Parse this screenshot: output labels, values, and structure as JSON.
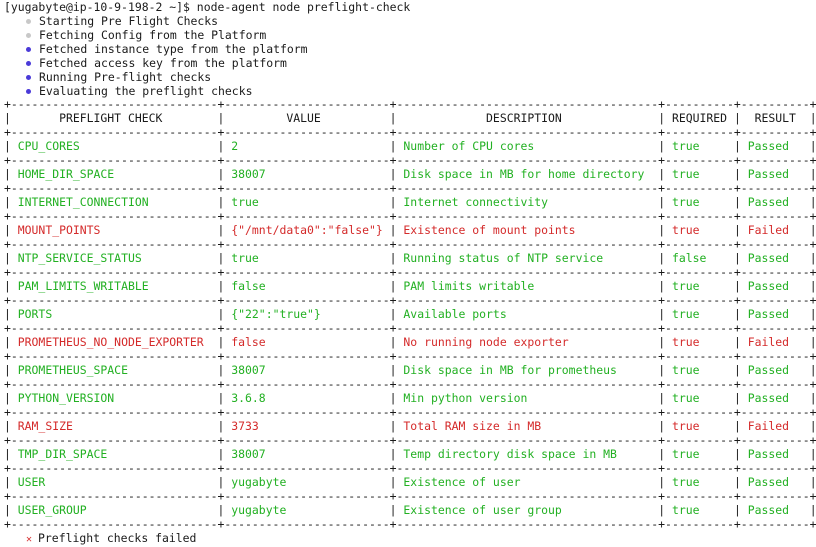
{
  "prompt": "[yugabyte@ip-10-9-198-2 ~]$ node-agent node preflight-check",
  "colors": {
    "pending_bullet": "#c8c8c8",
    "done_bullet": "#4a3ad8",
    "pass": "#22b022",
    "fail": "#d42a2a",
    "error_mark": "#d63030"
  },
  "steps": [
    {
      "text": "Starting Pre Flight Checks",
      "state": "pending"
    },
    {
      "text": "Fetching Config from the Platform",
      "state": "pending"
    },
    {
      "text": "Fetched instance type from the platform",
      "state": "done"
    },
    {
      "text": "Fetched access key from the platform",
      "state": "done"
    },
    {
      "text": "Running Pre-flight checks",
      "state": "done"
    },
    {
      "text": "Evaluating the preflight checks",
      "state": "done"
    }
  ],
  "table": {
    "headers": [
      "PREFLIGHT CHECK",
      "VALUE",
      "DESCRIPTION",
      "REQUIRED",
      "RESULT"
    ],
    "rows": [
      [
        "CPU_CORES",
        "2",
        "Number of CPU cores",
        "true",
        "Passed"
      ],
      [
        "HOME_DIR_SPACE",
        "38007",
        "Disk space in MB for home directory",
        "true",
        "Passed"
      ],
      [
        "INTERNET_CONNECTION",
        "true",
        "Internet connectivity",
        "true",
        "Passed"
      ],
      [
        "MOUNT_POINTS",
        "{\"/mnt/data0\":\"false\"}",
        "Existence of mount points",
        "true",
        "Failed"
      ],
      [
        "NTP_SERVICE_STATUS",
        "true",
        "Running status of NTP service",
        "false",
        "Passed"
      ],
      [
        "PAM_LIMITS_WRITABLE",
        "false",
        "PAM limits writable",
        "true",
        "Passed"
      ],
      [
        "PORTS",
        "{\"22\":\"true\"}",
        "Available ports",
        "true",
        "Passed"
      ],
      [
        "PROMETHEUS_NO_NODE_EXPORTER",
        "false",
        "No running node exporter",
        "true",
        "Failed"
      ],
      [
        "PROMETHEUS_SPACE",
        "38007",
        "Disk space in MB for prometheus",
        "true",
        "Passed"
      ],
      [
        "PYTHON_VERSION",
        "3.6.8",
        "Min python version",
        "true",
        "Passed"
      ],
      [
        "RAM_SIZE",
        "3733",
        "Total RAM size in MB",
        "true",
        "Failed"
      ],
      [
        "TMP_DIR_SPACE",
        "38007",
        "Temp directory disk space in MB",
        "true",
        "Passed"
      ],
      [
        "USER",
        "yugabyte",
        "Existence of user",
        "true",
        "Passed"
      ],
      [
        "USER_GROUP",
        "yugabyte",
        "Existence of user group",
        "true",
        "Passed"
      ]
    ]
  },
  "footer": {
    "icon": "x-mark-icon",
    "text": "Preflight checks failed"
  }
}
